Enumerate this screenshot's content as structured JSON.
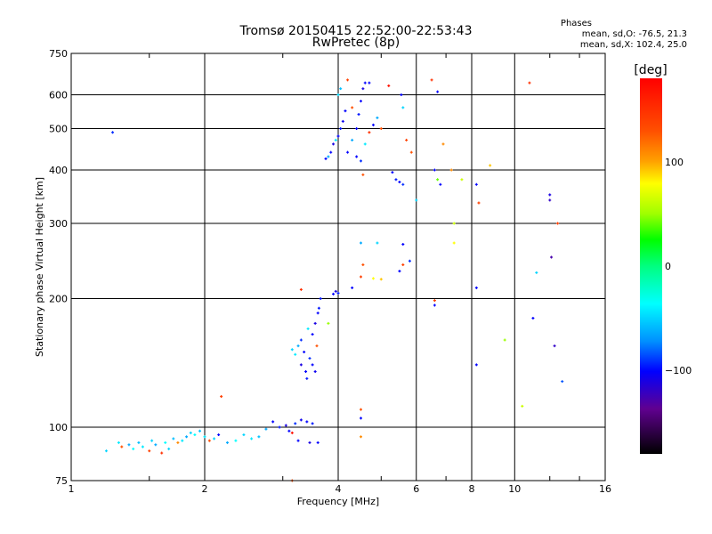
{
  "chart_data": {
    "type": "scatter",
    "title": "Tromsø 20150415 22:52:00-22:53:43",
    "subtitle": "RwPretec (8p)",
    "xlabel": "Frequency [MHz]",
    "ylabel": "Stationary phase Virtual Height [km]",
    "xscale": "log",
    "yscale": "log",
    "xlim": [
      1,
      16
    ],
    "ylim": [
      75,
      750
    ],
    "xticks": [
      1,
      2,
      4,
      6,
      8,
      10,
      16
    ],
    "yticks": [
      75,
      100,
      200,
      300,
      400,
      500,
      600,
      750
    ],
    "grid": true,
    "phase_box": {
      "title": "Phases",
      "line_o": "mean, sd,O: -76.5, 21.3",
      "line_x": "mean, sd,X: 102.4, 25.0"
    },
    "colorbar": {
      "label": "[deg]",
      "range": [
        -180,
        180
      ],
      "ticks": [
        100,
        0,
        -100
      ]
    },
    "points": [
      [
        1.24,
        490,
        -90
      ],
      [
        1.2,
        88,
        -50
      ],
      [
        1.28,
        92,
        -45
      ],
      [
        1.3,
        90,
        130
      ],
      [
        1.35,
        91,
        -60
      ],
      [
        1.38,
        89,
        -40
      ],
      [
        1.42,
        92,
        -55
      ],
      [
        1.45,
        90,
        -45
      ],
      [
        1.5,
        88,
        140
      ],
      [
        1.52,
        93,
        -50
      ],
      [
        1.55,
        91,
        -60
      ],
      [
        1.6,
        87,
        150
      ],
      [
        1.63,
        92,
        -40
      ],
      [
        1.66,
        89,
        -50
      ],
      [
        1.7,
        94,
        -55
      ],
      [
        1.74,
        92,
        120
      ],
      [
        1.78,
        93,
        -45
      ],
      [
        1.82,
        95,
        -60
      ],
      [
        1.86,
        97,
        -50
      ],
      [
        1.9,
        96,
        -40
      ],
      [
        1.95,
        98,
        -55
      ],
      [
        2.0,
        95,
        -45
      ],
      [
        2.05,
        93,
        130
      ],
      [
        2.1,
        94,
        -50
      ],
      [
        2.15,
        96,
        -100
      ],
      [
        2.18,
        118,
        140
      ],
      [
        2.25,
        92,
        -60
      ],
      [
        2.35,
        93,
        -40
      ],
      [
        2.45,
        96,
        -50
      ],
      [
        2.55,
        94,
        -45
      ],
      [
        2.65,
        95,
        -55
      ],
      [
        2.75,
        99,
        -60
      ],
      [
        2.85,
        103,
        -100
      ],
      [
        2.95,
        100,
        -95
      ],
      [
        3.05,
        101,
        -110
      ],
      [
        3.1,
        98,
        -100
      ],
      [
        3.15,
        97,
        170
      ],
      [
        3.2,
        102,
        -90
      ],
      [
        3.3,
        104,
        -105
      ],
      [
        3.4,
        103,
        -100
      ],
      [
        3.5,
        102,
        -95
      ],
      [
        3.25,
        93,
        -100
      ],
      [
        3.45,
        92,
        -110
      ],
      [
        3.6,
        92,
        -100
      ],
      [
        3.15,
        75,
        130
      ],
      [
        3.15,
        152,
        -50
      ],
      [
        3.2,
        148,
        -45
      ],
      [
        3.25,
        155,
        -60
      ],
      [
        3.3,
        160,
        -90
      ],
      [
        3.35,
        150,
        -100
      ],
      [
        3.3,
        140,
        -110
      ],
      [
        3.38,
        135,
        -100
      ],
      [
        3.4,
        130,
        -95
      ],
      [
        3.45,
        145,
        -90
      ],
      [
        3.5,
        165,
        -100
      ],
      [
        3.55,
        175,
        -110
      ],
      [
        3.6,
        185,
        -100
      ],
      [
        3.62,
        190,
        -95
      ],
      [
        3.5,
        140,
        -100
      ],
      [
        3.55,
        135,
        -105
      ],
      [
        3.42,
        170,
        -45
      ],
      [
        3.58,
        155,
        130
      ],
      [
        3.65,
        200,
        -95
      ],
      [
        3.3,
        210,
        150
      ],
      [
        3.8,
        175,
        80
      ],
      [
        3.9,
        205,
        -100
      ],
      [
        3.95,
        208,
        -110
      ],
      [
        4.0,
        206,
        -95
      ],
      [
        4.3,
        212,
        -100
      ],
      [
        4.5,
        225,
        140
      ],
      [
        4.55,
        240,
        130
      ],
      [
        4.8,
        223,
        100
      ],
      [
        5.0,
        222,
        110
      ],
      [
        5.5,
        232,
        -100
      ],
      [
        5.6,
        240,
        140
      ],
      [
        4.5,
        270,
        -60
      ],
      [
        4.9,
        270,
        -50
      ],
      [
        5.6,
        268,
        -100
      ],
      [
        5.8,
        245,
        -90
      ],
      [
        3.75,
        425,
        -100
      ],
      [
        3.8,
        430,
        -60
      ],
      [
        3.85,
        440,
        -100
      ],
      [
        3.9,
        460,
        -110
      ],
      [
        3.95,
        470,
        -45
      ],
      [
        4.0,
        480,
        -100
      ],
      [
        4.05,
        500,
        -95
      ],
      [
        4.1,
        520,
        -105
      ],
      [
        4.15,
        550,
        -100
      ],
      [
        4.0,
        600,
        -50
      ],
      [
        4.05,
        620,
        -55
      ],
      [
        4.2,
        440,
        -100
      ],
      [
        4.3,
        470,
        -60
      ],
      [
        4.4,
        500,
        -100
      ],
      [
        4.45,
        540,
        -95
      ],
      [
        4.5,
        580,
        -100
      ],
      [
        4.55,
        620,
        -110
      ],
      [
        4.6,
        640,
        -100
      ],
      [
        4.4,
        430,
        -100
      ],
      [
        4.5,
        420,
        -90
      ],
      [
        4.6,
        460,
        -45
      ],
      [
        4.7,
        490,
        150
      ],
      [
        4.8,
        510,
        -100
      ],
      [
        4.9,
        530,
        -60
      ],
      [
        5.0,
        500,
        130
      ],
      [
        4.3,
        560,
        130
      ],
      [
        4.2,
        650,
        140
      ],
      [
        4.55,
        390,
        130
      ],
      [
        4.7,
        640,
        -100
      ],
      [
        5.2,
        630,
        170
      ],
      [
        5.3,
        395,
        -100
      ],
      [
        5.4,
        380,
        -95
      ],
      [
        5.5,
        375,
        -100
      ],
      [
        5.6,
        370,
        -90
      ],
      [
        5.55,
        600,
        -100
      ],
      [
        5.6,
        560,
        -50
      ],
      [
        5.7,
        470,
        140
      ],
      [
        6.6,
        400,
        -100
      ],
      [
        6.7,
        380,
        70
      ],
      [
        6.8,
        370,
        -100
      ],
      [
        6.5,
        650,
        150
      ],
      [
        6.7,
        610,
        -100
      ],
      [
        7.2,
        400,
        120
      ],
      [
        7.3,
        300,
        90
      ],
      [
        7.3,
        270,
        100
      ],
      [
        7.6,
        380,
        90
      ],
      [
        6.0,
        340,
        -50
      ],
      [
        5.85,
        440,
        130
      ],
      [
        6.9,
        460,
        120
      ],
      [
        8.2,
        370,
        -100
      ],
      [
        8.3,
        335,
        140
      ],
      [
        8.2,
        212,
        -100
      ],
      [
        8.2,
        140,
        -100
      ],
      [
        8.8,
        410,
        110
      ],
      [
        9.5,
        160,
        80
      ],
      [
        10.4,
        112,
        90
      ],
      [
        10.8,
        640,
        150
      ],
      [
        11.2,
        230,
        -50
      ],
      [
        11.0,
        180,
        -100
      ],
      [
        12.0,
        350,
        -110
      ],
      [
        12.0,
        340,
        -120
      ],
      [
        12.1,
        250,
        -130
      ],
      [
        12.3,
        155,
        -120
      ],
      [
        12.8,
        128,
        -80
      ],
      [
        12.5,
        300,
        140
      ],
      [
        6.6,
        193,
        -100
      ],
      [
        6.6,
        198,
        140
      ],
      [
        4.5,
        95,
        120
      ],
      [
        4.5,
        105,
        -100
      ],
      [
        4.5,
        110,
        130
      ]
    ]
  }
}
